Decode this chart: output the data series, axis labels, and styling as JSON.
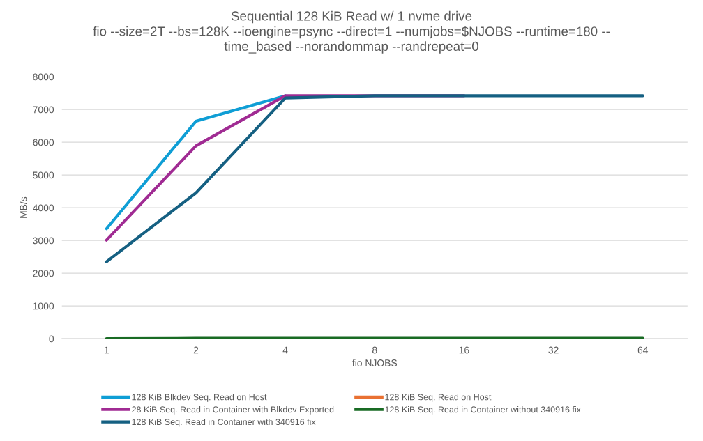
{
  "chart_data": {
    "type": "line",
    "title": "Sequential 128 KiB Read w/ 1 nvme drive",
    "subtitle": "fio --size=2T --bs=128K --ioengine=psync --direct=1 --numjobs=$NJOBS --runtime=180 --\ntime_based --norandommap --randrepeat=0",
    "xlabel": "fio NJOBS",
    "ylabel": "MB/s",
    "categories": [
      "1",
      "2",
      "4",
      "8",
      "16",
      "32",
      "64"
    ],
    "series": [
      {
        "name": "128 KiB Blkdev Seq. Read on Host",
        "color": "#0f9ed5",
        "values": [
          3360,
          6640,
          7420,
          null,
          null,
          null,
          null
        ]
      },
      {
        "name": "128 KiB Seq. Read on Host",
        "color": "#e97132",
        "values": [
          null,
          null,
          null,
          null,
          null,
          null,
          null
        ]
      },
      {
        "name": "28 KiB Seq. Read in Container with Blkdev Exported",
        "color": "#a02b93",
        "values": [
          3010,
          5890,
          7420,
          7420,
          7420,
          null,
          null
        ]
      },
      {
        "name": "128 KiB Seq. Read in Container without 340916 fix",
        "color": "#196b24",
        "values": [
          0,
          10,
          10,
          10,
          10,
          10,
          10
        ]
      },
      {
        "name": "128 KiB Seq. Read in Container with 340916 fix",
        "color": "#156082",
        "values": [
          2350,
          4450,
          7350,
          7420,
          7420,
          7420,
          7420
        ]
      }
    ],
    "ylim": [
      0,
      8000
    ],
    "yticks": [
      0,
      1000,
      2000,
      3000,
      4000,
      5000,
      6000,
      7000,
      8000
    ],
    "grid": "y",
    "legend": "bottom",
    "marker": "none",
    "line_style": "solid"
  }
}
